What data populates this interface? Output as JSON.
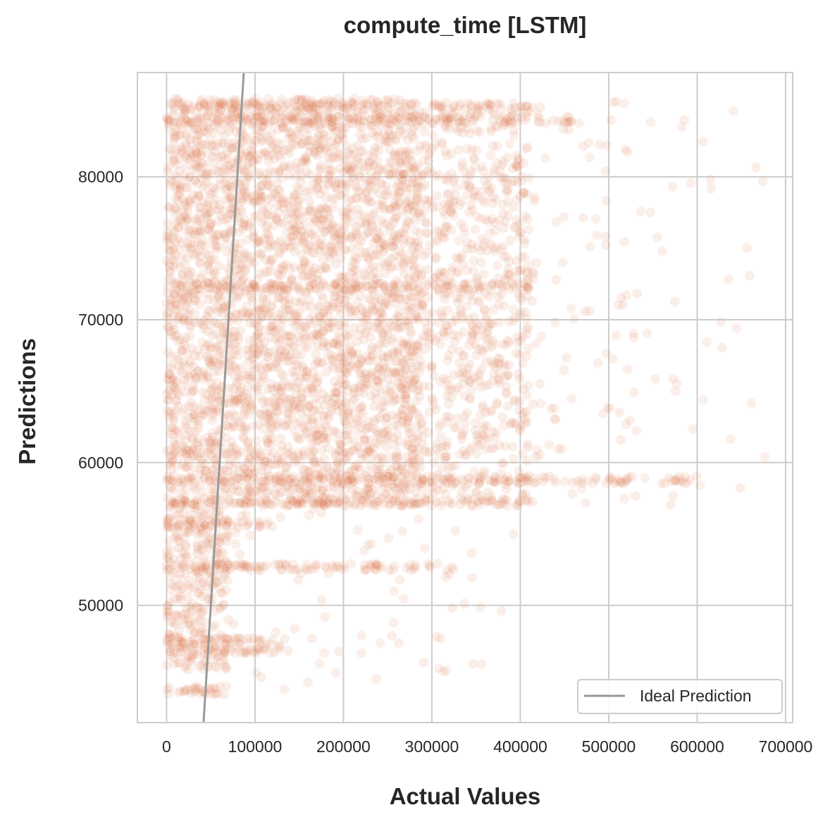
{
  "chart_data": {
    "type": "scatter",
    "title": "compute_time [LSTM]",
    "xlabel": "Actual Values",
    "ylabel": "Predictions",
    "xlim": [
      -33000,
      708000
    ],
    "ylim": [
      41800,
      87300
    ],
    "xticks": [
      0,
      100000,
      200000,
      300000,
      400000,
      500000,
      600000,
      700000
    ],
    "xtick_labels": [
      "0",
      "100000",
      "200000",
      "300000",
      "400000",
      "500000",
      "600000",
      "700000"
    ],
    "yticks": [
      50000,
      60000,
      70000,
      80000
    ],
    "ytick_labels": [
      "50000",
      "60000",
      "70000",
      "80000"
    ],
    "grid": true,
    "point_color": "#e07b4f",
    "point_alpha": 0.12,
    "ideal_line_color": "#999999",
    "legend": {
      "placement": "lower-right",
      "entries": [
        "Ideal Prediction"
      ]
    },
    "series": [
      {
        "values_note_free": true,
        "regions": [
          {
            "x_range": [
              0,
              290000
            ],
            "y_range": [
              57000,
              85500
            ],
            "density": "very high"
          },
          {
            "x_range": [
              290000,
              410000
            ],
            "y_range": [
              57000,
              85000
            ],
            "density": "high"
          },
          {
            "x_range": [
              410000,
              680000
            ],
            "y_range": [
              57000,
              85500
            ],
            "density": "sparse"
          },
          {
            "x_range": [
              0,
              70000
            ],
            "y_range": [
              45500,
              57000
            ],
            "density": "very high"
          },
          {
            "x_range": [
              70000,
              400000
            ],
            "y_range": [
              44000,
              57000
            ],
            "density": "sparse"
          },
          {
            "x_range": [
              0,
              70000
            ],
            "y_range": [
              43700,
              44600
            ],
            "density": "high"
          }
        ],
        "bands": [
          {
            "y": 85000,
            "x_range": [
              0,
              410000
            ]
          },
          {
            "y": 84000,
            "x_range": [
              0,
              470000
            ]
          },
          {
            "y": 72300,
            "x_range": [
              0,
              410000
            ]
          },
          {
            "y": 58800,
            "x_range": [
              0,
              600000
            ]
          },
          {
            "y": 57200,
            "x_range": [
              0,
              420000
            ]
          },
          {
            "y": 55700,
            "x_range": [
              0,
              120000
            ]
          },
          {
            "y": 52700,
            "x_range": [
              0,
              330000
            ]
          },
          {
            "y": 47500,
            "x_range": [
              0,
              120000
            ]
          },
          {
            "y": 46900,
            "x_range": [
              0,
              140000
            ]
          },
          {
            "y": 44000,
            "x_range": [
              0,
              70000
            ]
          }
        ]
      }
    ],
    "ideal_line": [
      [
        41800,
        41800
      ],
      [
        87300,
        87300
      ]
    ]
  }
}
